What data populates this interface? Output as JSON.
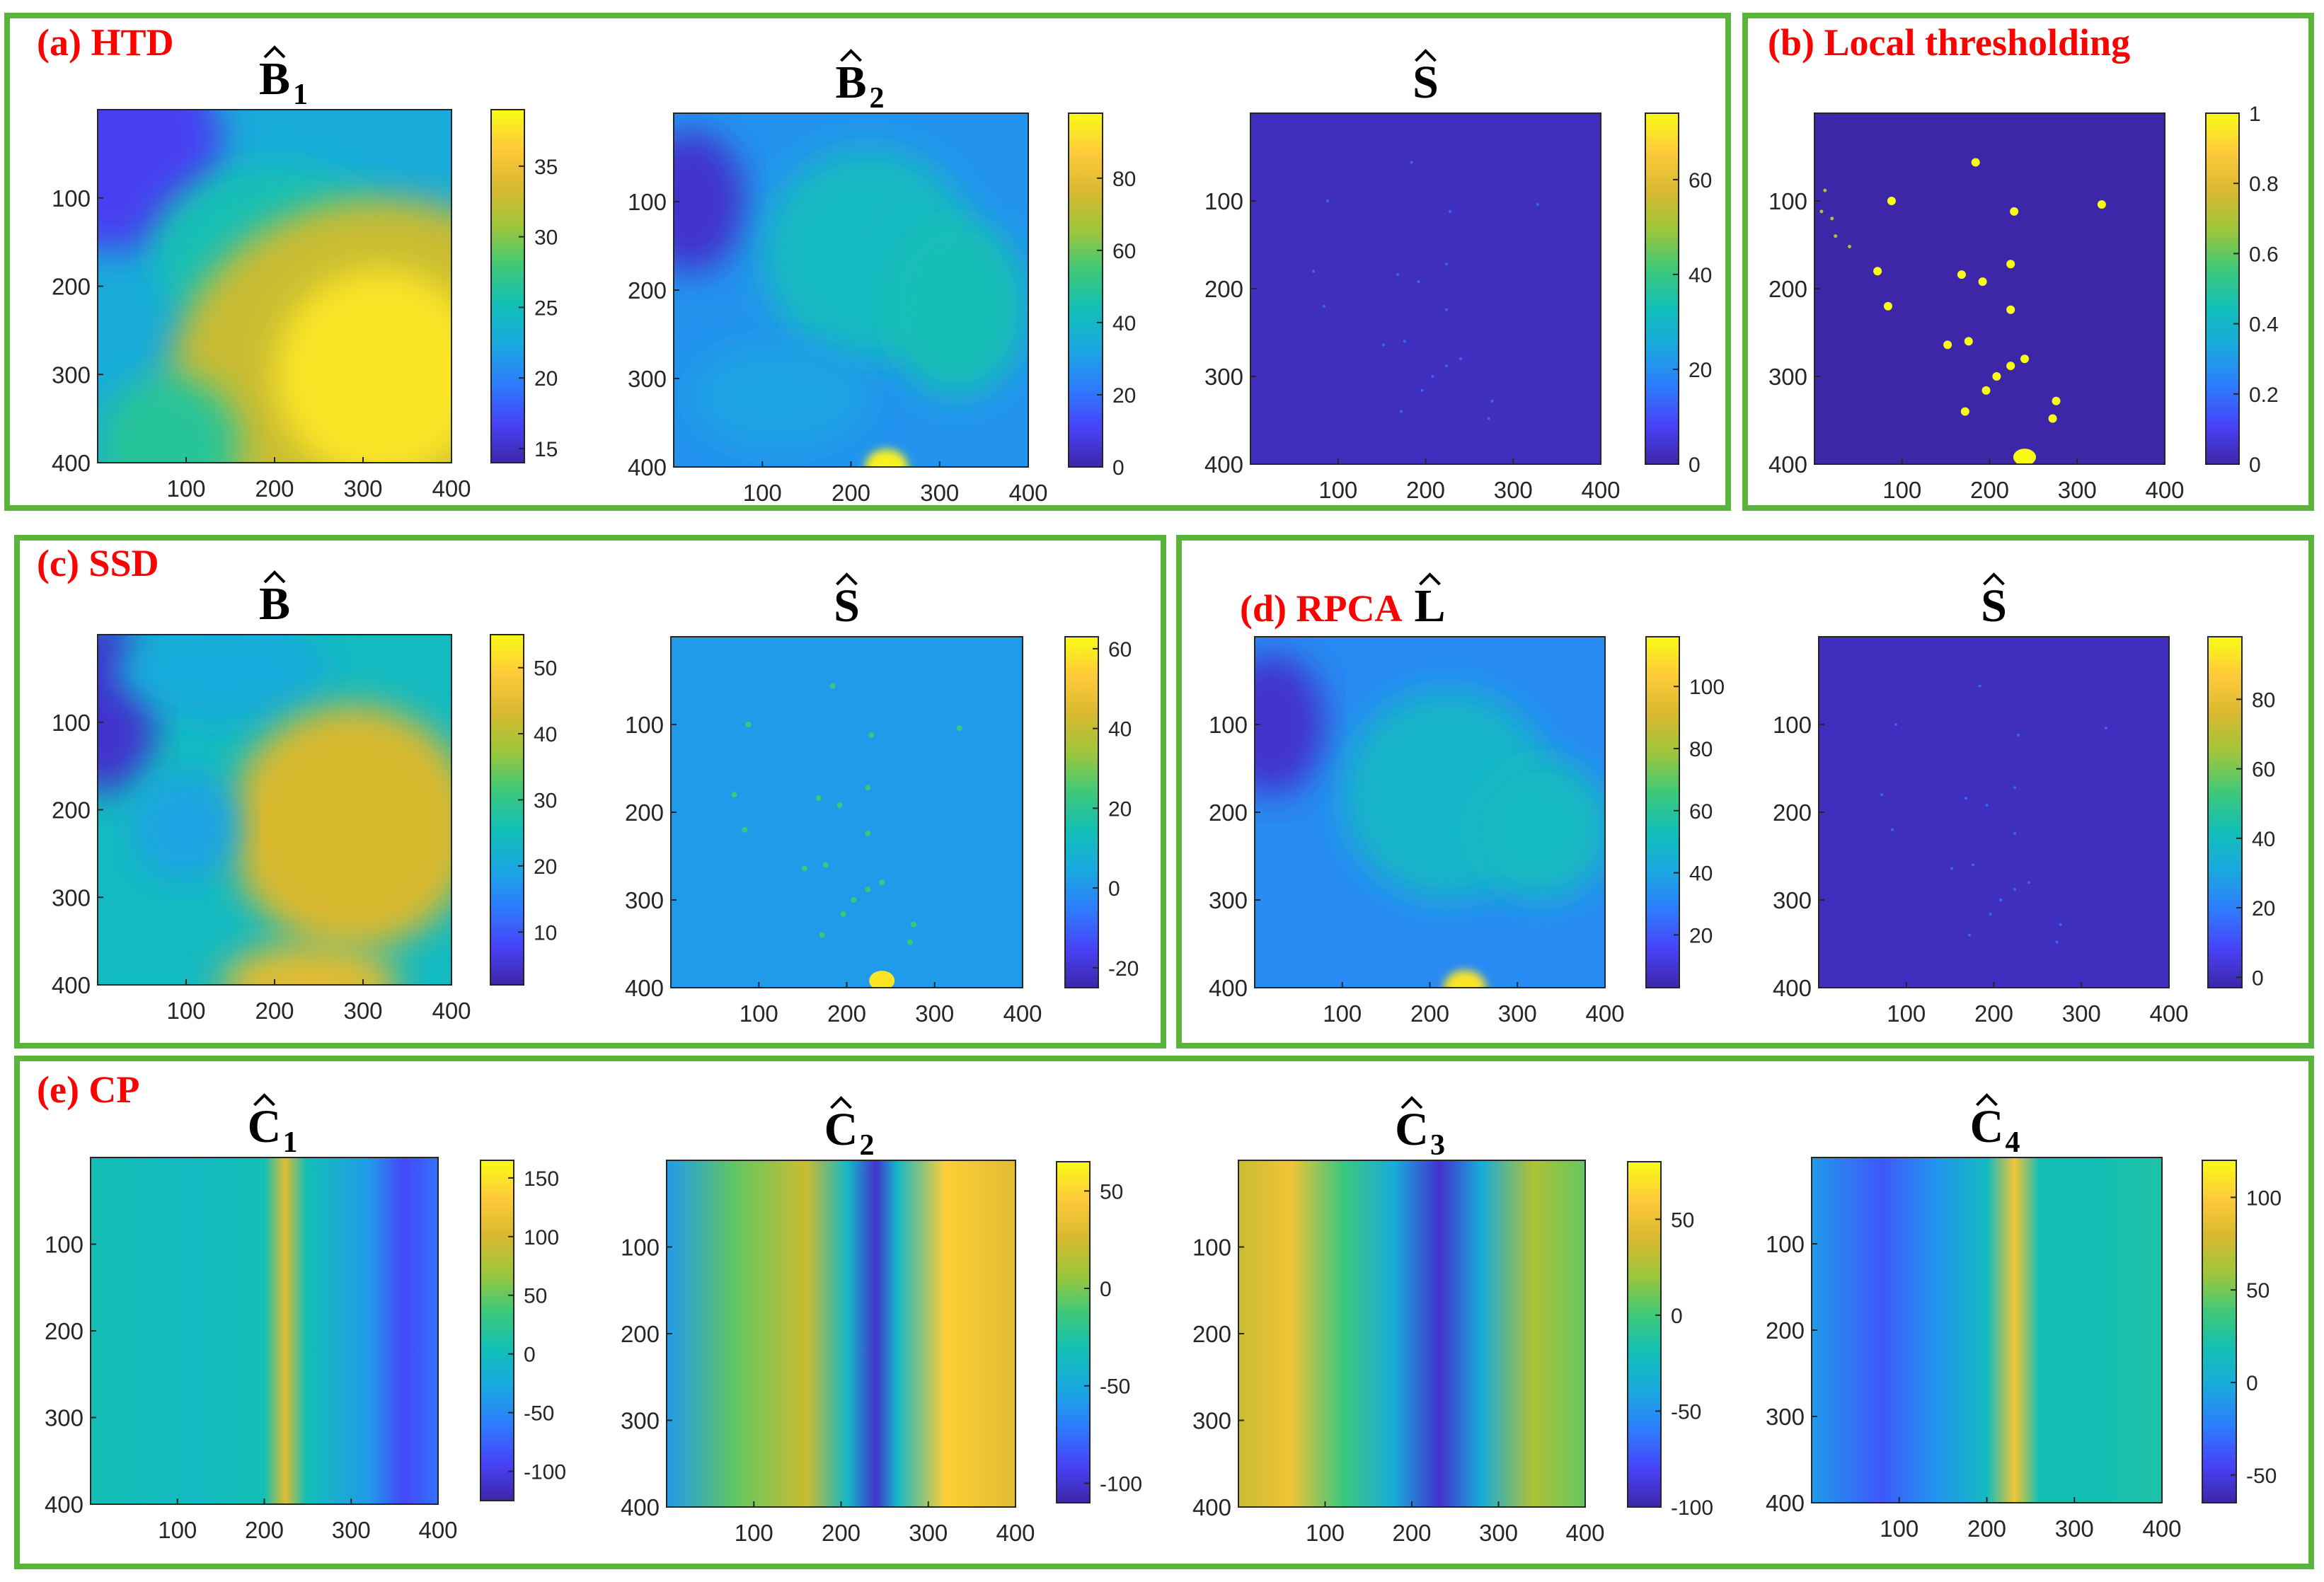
{
  "figure": {
    "frame_color": "#58b43a",
    "label_color": "#ff0000",
    "colormap": [
      "#3e26a8",
      "#4743f8",
      "#2d7cfd",
      "#1aa8e0",
      "#11bfb8",
      "#3ec879",
      "#9cc63b",
      "#d8b92f",
      "#feca3a",
      "#f9fb15"
    ]
  },
  "groups": [
    {
      "id": "htd",
      "label": "(a) HTD"
    },
    {
      "id": "local",
      "label": "(b) Local thresholding"
    },
    {
      "id": "ssd",
      "label": "(c) SSD"
    },
    {
      "id": "rpca",
      "label": "(d) RPCA"
    },
    {
      "id": "cp",
      "label": "(e) CP"
    }
  ],
  "chart_data": [
    {
      "type": "heatmap",
      "group": "htd",
      "title_base": "B",
      "title_sub": "1",
      "pattern": "htd_b1",
      "x_ticks": [
        "100",
        "200",
        "300",
        "400"
      ],
      "y_ticks": [
        "100",
        "200",
        "300",
        "400"
      ],
      "colorbar_ticks": [
        "35",
        "30",
        "25",
        "20",
        "15"
      ],
      "colorbar_values": [
        35,
        30,
        25,
        20,
        15
      ],
      "range": [
        14,
        39
      ]
    },
    {
      "type": "heatmap",
      "group": "htd",
      "title_base": "B",
      "title_sub": "2",
      "pattern": "htd_b2",
      "x_ticks": [
        "100",
        "200",
        "300",
        "400"
      ],
      "y_ticks": [
        "100",
        "200",
        "300",
        "400"
      ],
      "colorbar_ticks": [
        "80",
        "60",
        "40",
        "20",
        "0"
      ],
      "colorbar_values": [
        80,
        60,
        40,
        20,
        0
      ],
      "range": [
        0,
        98
      ]
    },
    {
      "type": "heatmap",
      "group": "htd",
      "title_base": "S",
      "title_sub": "",
      "pattern": "sparse_dark",
      "x_ticks": [
        "100",
        "200",
        "300",
        "400"
      ],
      "y_ticks": [
        "100",
        "200",
        "300",
        "400"
      ],
      "colorbar_ticks": [
        "60",
        "40",
        "20",
        "0"
      ],
      "colorbar_values": [
        60,
        40,
        20,
        0
      ],
      "range": [
        0,
        74
      ]
    },
    {
      "type": "heatmap",
      "group": "local",
      "title_base": "",
      "title_sub": "",
      "pattern": "binary",
      "x_ticks": [
        "100",
        "200",
        "300",
        "400"
      ],
      "y_ticks": [
        "100",
        "200",
        "300",
        "400"
      ],
      "colorbar_ticks": [
        "1",
        "0.8",
        "0.6",
        "0.4",
        "0.2",
        "0"
      ],
      "colorbar_values": [
        1,
        0.8,
        0.6,
        0.4,
        0.2,
        0
      ],
      "range": [
        0,
        1
      ]
    },
    {
      "type": "heatmap",
      "group": "ssd",
      "title_base": "B",
      "title_sub": "",
      "pattern": "ssd_b",
      "x_ticks": [
        "100",
        "200",
        "300",
        "400"
      ],
      "y_ticks": [
        "100",
        "200",
        "300",
        "400"
      ],
      "colorbar_ticks": [
        "50",
        "40",
        "30",
        "20",
        "10"
      ],
      "colorbar_values": [
        50,
        40,
        30,
        20,
        10
      ],
      "range": [
        2,
        55
      ]
    },
    {
      "type": "heatmap",
      "group": "ssd",
      "title_base": "S",
      "title_sub": "",
      "pattern": "ssd_s",
      "x_ticks": [
        "100",
        "200",
        "300",
        "400"
      ],
      "y_ticks": [
        "100",
        "200",
        "300",
        "400"
      ],
      "colorbar_ticks": [
        "60",
        "40",
        "20",
        "0",
        "-20"
      ],
      "colorbar_values": [
        60,
        40,
        20,
        0,
        -20
      ],
      "range": [
        -25,
        63
      ]
    },
    {
      "type": "heatmap",
      "group": "rpca",
      "title_base": "L",
      "title_sub": "",
      "pattern": "rpca_l",
      "x_ticks": [
        "100",
        "200",
        "300",
        "400"
      ],
      "y_ticks": [
        "100",
        "200",
        "300",
        "400"
      ],
      "colorbar_ticks": [
        "100",
        "80",
        "60",
        "40",
        "20"
      ],
      "colorbar_values": [
        100,
        80,
        60,
        40,
        20
      ],
      "range": [
        3,
        116
      ]
    },
    {
      "type": "heatmap",
      "group": "rpca",
      "title_base": "S",
      "title_sub": "",
      "pattern": "sparse_dark",
      "x_ticks": [
        "100",
        "200",
        "300",
        "400"
      ],
      "y_ticks": [
        "100",
        "200",
        "300",
        "400"
      ],
      "colorbar_ticks": [
        "80",
        "60",
        "40",
        "20",
        "0"
      ],
      "colorbar_values": [
        80,
        60,
        40,
        20,
        0
      ],
      "range": [
        -3,
        98
      ]
    },
    {
      "type": "heatmap",
      "group": "cp",
      "title_base": "C",
      "title_sub": "1",
      "pattern": "cp1",
      "x_ticks": [
        "100",
        "200",
        "300",
        "400"
      ],
      "y_ticks": [
        "100",
        "200",
        "300",
        "400"
      ],
      "colorbar_ticks": [
        "150",
        "100",
        "50",
        "0",
        "-50",
        "-100"
      ],
      "colorbar_values": [
        150,
        100,
        50,
        0,
        -50,
        -100
      ],
      "range": [
        -125,
        165
      ]
    },
    {
      "type": "heatmap",
      "group": "cp",
      "title_base": "C",
      "title_sub": "2",
      "pattern": "cp2",
      "x_ticks": [
        "100",
        "200",
        "300",
        "400"
      ],
      "y_ticks": [
        "100",
        "200",
        "300",
        "400"
      ],
      "colorbar_ticks": [
        "50",
        "0",
        "-50",
        "-100"
      ],
      "colorbar_values": [
        50,
        0,
        -50,
        -100
      ],
      "range": [
        -110,
        65
      ]
    },
    {
      "type": "heatmap",
      "group": "cp",
      "title_base": "C",
      "title_sub": "3",
      "pattern": "cp3",
      "x_ticks": [
        "100",
        "200",
        "300",
        "400"
      ],
      "y_ticks": [
        "100",
        "200",
        "300",
        "400"
      ],
      "colorbar_ticks": [
        "50",
        "0",
        "-50",
        "-100"
      ],
      "colorbar_values": [
        50,
        0,
        -50,
        -100
      ],
      "range": [
        -100,
        80
      ]
    },
    {
      "type": "heatmap",
      "group": "cp",
      "title_base": "C",
      "title_sub": "4",
      "pattern": "cp4",
      "x_ticks": [
        "100",
        "200",
        "300",
        "400"
      ],
      "y_ticks": [
        "100",
        "200",
        "300",
        "400"
      ],
      "colorbar_ticks": [
        "100",
        "50",
        "0",
        "-50"
      ],
      "colorbar_values": [
        100,
        50,
        0,
        -50
      ],
      "range": [
        -65,
        120
      ]
    }
  ]
}
